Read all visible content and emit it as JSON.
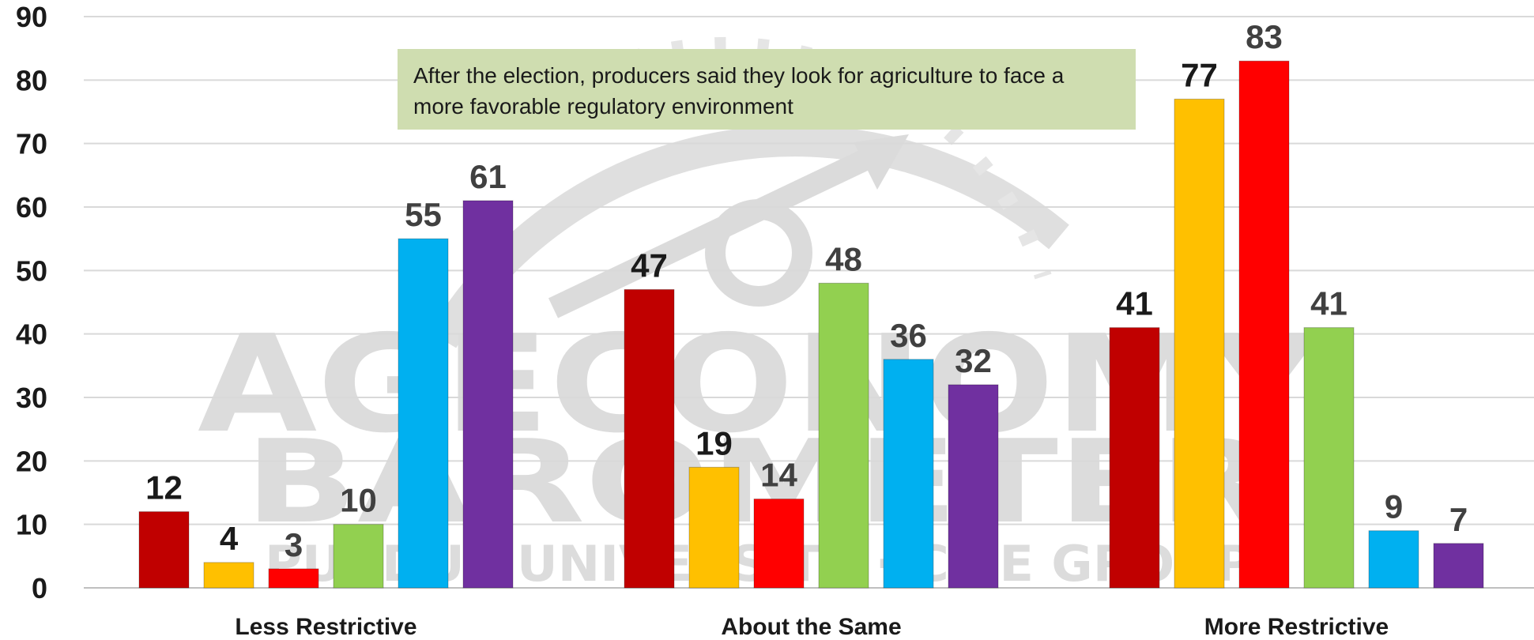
{
  "chart_data": {
    "type": "bar",
    "categories": [
      "Less Restrictive",
      "About the Same",
      "More Restrictive"
    ],
    "series": [
      {
        "values": [
          12,
          47,
          41
        ],
        "color": "#c00000",
        "label_color": "#1a1a1a"
      },
      {
        "values": [
          4,
          19,
          77
        ],
        "color": "#ffc000",
        "label_color": "#1a1a1a"
      },
      {
        "values": [
          3,
          14,
          83
        ],
        "color": "#ff0000",
        "label_color": "#404040"
      },
      {
        "values": [
          10,
          48,
          41
        ],
        "color": "#92d050",
        "label_color": "#404040"
      },
      {
        "values": [
          55,
          36,
          9
        ],
        "color": "#00b0f0",
        "label_color": "#404040"
      },
      {
        "values": [
          61,
          32,
          7
        ],
        "color": "#7030a0",
        "label_color": "#404040"
      }
    ],
    "ylim": [
      0,
      90
    ],
    "yticks": [
      0,
      10,
      20,
      30,
      40,
      50,
      60,
      70,
      80,
      90
    ],
    "grid": true,
    "annotation": "After the election, producers said they  look for agriculture to face a more favorable regulatory environment",
    "colors": {
      "grid": "#d9d9d9",
      "annotation_bg": "#cfddb0"
    }
  },
  "watermark": {
    "line1": "AGECONOMY",
    "line2": "BAROMETER",
    "line3": "PURDUE UNIVERSITY · CME GROUP"
  }
}
